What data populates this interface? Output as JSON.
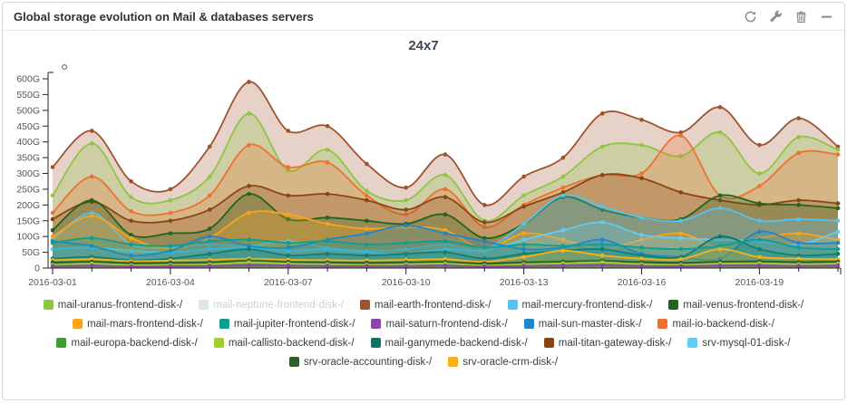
{
  "panel": {
    "title": "Global storage evolution on Mail & databases servers",
    "toolbar_icons": [
      "refresh-icon",
      "wrench-icon",
      "trash-icon",
      "collapse-icon"
    ],
    "icon_color": "#8f897e"
  },
  "chart_data": {
    "type": "area",
    "title": "24x7",
    "legend_position": "bottom",
    "grid": false,
    "y_unit": "G",
    "ylim": [
      0,
      620
    ],
    "y_ticks": [
      0,
      50,
      100,
      150,
      200,
      250,
      300,
      350,
      400,
      450,
      500,
      550,
      600
    ],
    "x_major_every": 3,
    "x": [
      "2016-03-01",
      "2016-03-02",
      "2016-03-03",
      "2016-03-04",
      "2016-03-05",
      "2016-03-06",
      "2016-03-07",
      "2016-03-08",
      "2016-03-09",
      "2016-03-10",
      "2016-03-11",
      "2016-03-12",
      "2016-03-13",
      "2016-03-14",
      "2016-03-15",
      "2016-03-16",
      "2016-03-17",
      "2016-03-18",
      "2016-03-19",
      "2016-03-20",
      "2016-03-21"
    ],
    "series": [
      {
        "name": "mail-uranus-frontend-disk-/",
        "color": "#8dc63f",
        "hidden": false,
        "values": [
          230,
          395,
          225,
          215,
          290,
          490,
          310,
          375,
          245,
          215,
          295,
          150,
          230,
          290,
          385,
          390,
          355,
          430,
          300,
          415,
          375
        ]
      },
      {
        "name": "mail-neptune-frontend-disk-/",
        "color": "#d8e7ec",
        "hidden": true,
        "values": []
      },
      {
        "name": "mail-earth-frontend-disk-/",
        "color": "#a0522d",
        "hidden": false,
        "values": [
          320,
          435,
          275,
          250,
          385,
          590,
          435,
          450,
          330,
          255,
          360,
          200,
          290,
          350,
          490,
          470,
          430,
          510,
          390,
          475,
          385
        ]
      },
      {
        "name": "mail-mercury-frontend-disk-/",
        "color": "#56c2ee",
        "hidden": false,
        "values": [
          90,
          175,
          75,
          65,
          75,
          70,
          85,
          65,
          55,
          60,
          75,
          60,
          140,
          230,
          195,
          160,
          150,
          190,
          150,
          155,
          150
        ]
      },
      {
        "name": "mail-venus-frontend-disk-/",
        "color": "#1e651e",
        "hidden": false,
        "values": [
          120,
          215,
          105,
          110,
          125,
          235,
          155,
          160,
          150,
          140,
          170,
          95,
          140,
          225,
          185,
          160,
          155,
          230,
          205,
          200,
          190
        ]
      },
      {
        "name": "mail-mars-frontend-disk-/",
        "color": "#f8a51b",
        "hidden": false,
        "values": [
          100,
          165,
          95,
          60,
          95,
          175,
          170,
          140,
          125,
          130,
          120,
          60,
          110,
          90,
          60,
          90,
          110,
          65,
          95,
          110,
          90
        ]
      },
      {
        "name": "mail-jupiter-frontend-disk-/",
        "color": "#0f9d8f",
        "hidden": false,
        "values": [
          80,
          95,
          75,
          70,
          85,
          90,
          80,
          85,
          75,
          80,
          85,
          65,
          75,
          70,
          75,
          65,
          60,
          70,
          90,
          65,
          60
        ]
      },
      {
        "name": "mail-saturn-frontend-disk-/",
        "color": "#8e44ad",
        "hidden": false,
        "values": [
          6,
          8,
          5,
          6,
          7,
          9,
          8,
          7,
          6,
          7,
          8,
          5,
          7,
          8,
          9,
          7,
          6,
          8,
          8,
          7,
          8
        ]
      },
      {
        "name": "mail-sun-master-disk-/",
        "color": "#1f86c9",
        "hidden": false,
        "values": [
          85,
          70,
          40,
          55,
          100,
          70,
          65,
          90,
          110,
          135,
          110,
          85,
          60,
          65,
          90,
          45,
          35,
          30,
          115,
          80,
          80
        ]
      },
      {
        "name": "mail-io-backend-disk-/",
        "color": "#ee7130",
        "hidden": false,
        "values": [
          175,
          290,
          180,
          175,
          230,
          390,
          320,
          335,
          230,
          170,
          250,
          130,
          200,
          255,
          295,
          300,
          420,
          230,
          260,
          365,
          360
        ]
      },
      {
        "name": "mail-europa-backend-disk-/",
        "color": "#3f9c35",
        "hidden": false,
        "values": [
          15,
          20,
          12,
          15,
          18,
          25,
          20,
          18,
          15,
          18,
          20,
          12,
          18,
          22,
          25,
          18,
          15,
          20,
          22,
          18,
          20
        ]
      },
      {
        "name": "mail-callisto-backend-disk-/",
        "color": "#a2cf2e",
        "hidden": false,
        "values": [
          10,
          14,
          9,
          10,
          12,
          18,
          14,
          12,
          10,
          12,
          14,
          8,
          12,
          15,
          18,
          12,
          10,
          14,
          15,
          12,
          14
        ]
      },
      {
        "name": "mail-ganymede-backend-disk-/",
        "color": "#0b7668",
        "hidden": false,
        "values": [
          30,
          35,
          25,
          30,
          45,
          60,
          40,
          45,
          40,
          45,
          50,
          30,
          45,
          55,
          60,
          40,
          35,
          100,
          60,
          40,
          45
        ]
      },
      {
        "name": "mail-titan-gateway-disk-/",
        "color": "#8b4513",
        "hidden": false,
        "values": [
          155,
          210,
          150,
          150,
          185,
          260,
          230,
          235,
          215,
          185,
          225,
          145,
          195,
          240,
          295,
          285,
          240,
          215,
          200,
          215,
          205
        ]
      },
      {
        "name": "srv-mysql-01-disk-/",
        "color": "#63ccf5",
        "hidden": false,
        "values": [
          60,
          65,
          55,
          50,
          60,
          65,
          55,
          60,
          50,
          45,
          60,
          55,
          90,
          120,
          145,
          105,
          95,
          90,
          85,
          75,
          115
        ]
      },
      {
        "name": "srv-oracle-accounting-disk-/",
        "color": "#2d5f2d",
        "hidden": false,
        "values": [
          18,
          20,
          16,
          17,
          18,
          22,
          19,
          18,
          17,
          18,
          19,
          15,
          18,
          20,
          22,
          19,
          17,
          20,
          21,
          19,
          20
        ]
      },
      {
        "name": "srv-oracle-crm-disk-/",
        "color": "#f9b117",
        "hidden": false,
        "values": [
          25,
          28,
          22,
          24,
          26,
          30,
          26,
          25,
          24,
          26,
          28,
          20,
          35,
          55,
          40,
          30,
          28,
          60,
          35,
          30,
          28
        ]
      }
    ]
  }
}
